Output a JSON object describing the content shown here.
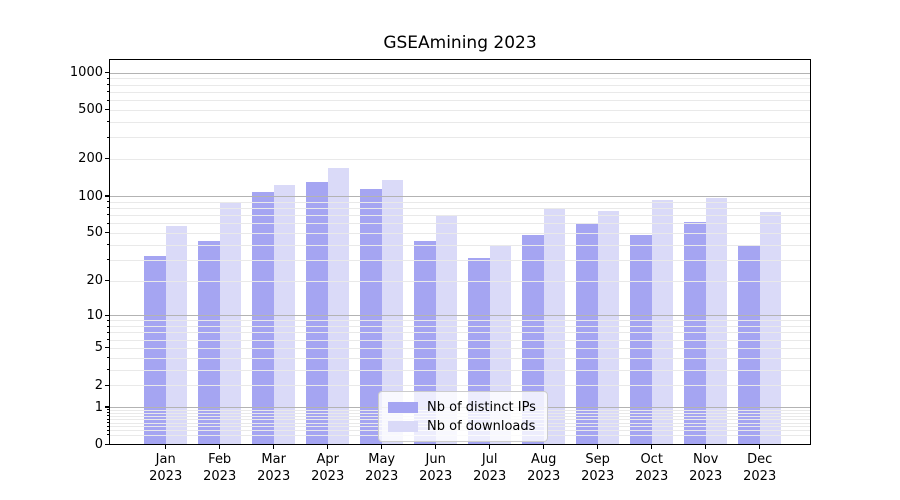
{
  "title": "GSEAmining 2023",
  "chart_data": {
    "type": "bar",
    "title": "GSEAmining 2023",
    "categories": [
      "Jan 2023",
      "Feb 2023",
      "Mar 2023",
      "Apr 2023",
      "May 2023",
      "Jun 2023",
      "Jul 2023",
      "Aug 2023",
      "Sep 2023",
      "Oct 2023",
      "Nov 2023",
      "Dec 2023"
    ],
    "series": [
      {
        "name": "Nb of distinct IPs",
        "color": "#a5a5f2",
        "values": [
          32,
          43,
          108,
          131,
          113,
          43,
          31,
          48,
          60,
          48,
          61,
          39
        ]
      },
      {
        "name": "Nb of downloads",
        "color": "#dadaf8",
        "values": [
          57,
          88,
          123,
          168,
          135,
          70,
          40,
          80,
          75,
          93,
          97,
          74
        ]
      }
    ],
    "xlabel": "",
    "ylabel": "",
    "yscale": "log1p",
    "ytick_labels": [
      "0",
      "1",
      "2",
      "5",
      "10",
      "20",
      "50",
      "100",
      "200",
      "500",
      "1000"
    ],
    "ylim": [
      0,
      1260
    ],
    "grid": true,
    "legend_position": "lower center"
  },
  "colors": {
    "background": "#ffffff",
    "axis": "#000000",
    "grid_major": "#b3b3b3",
    "grid_minor": "#e9e9e9",
    "legend_border": "#cccccc",
    "text": "#000000"
  }
}
